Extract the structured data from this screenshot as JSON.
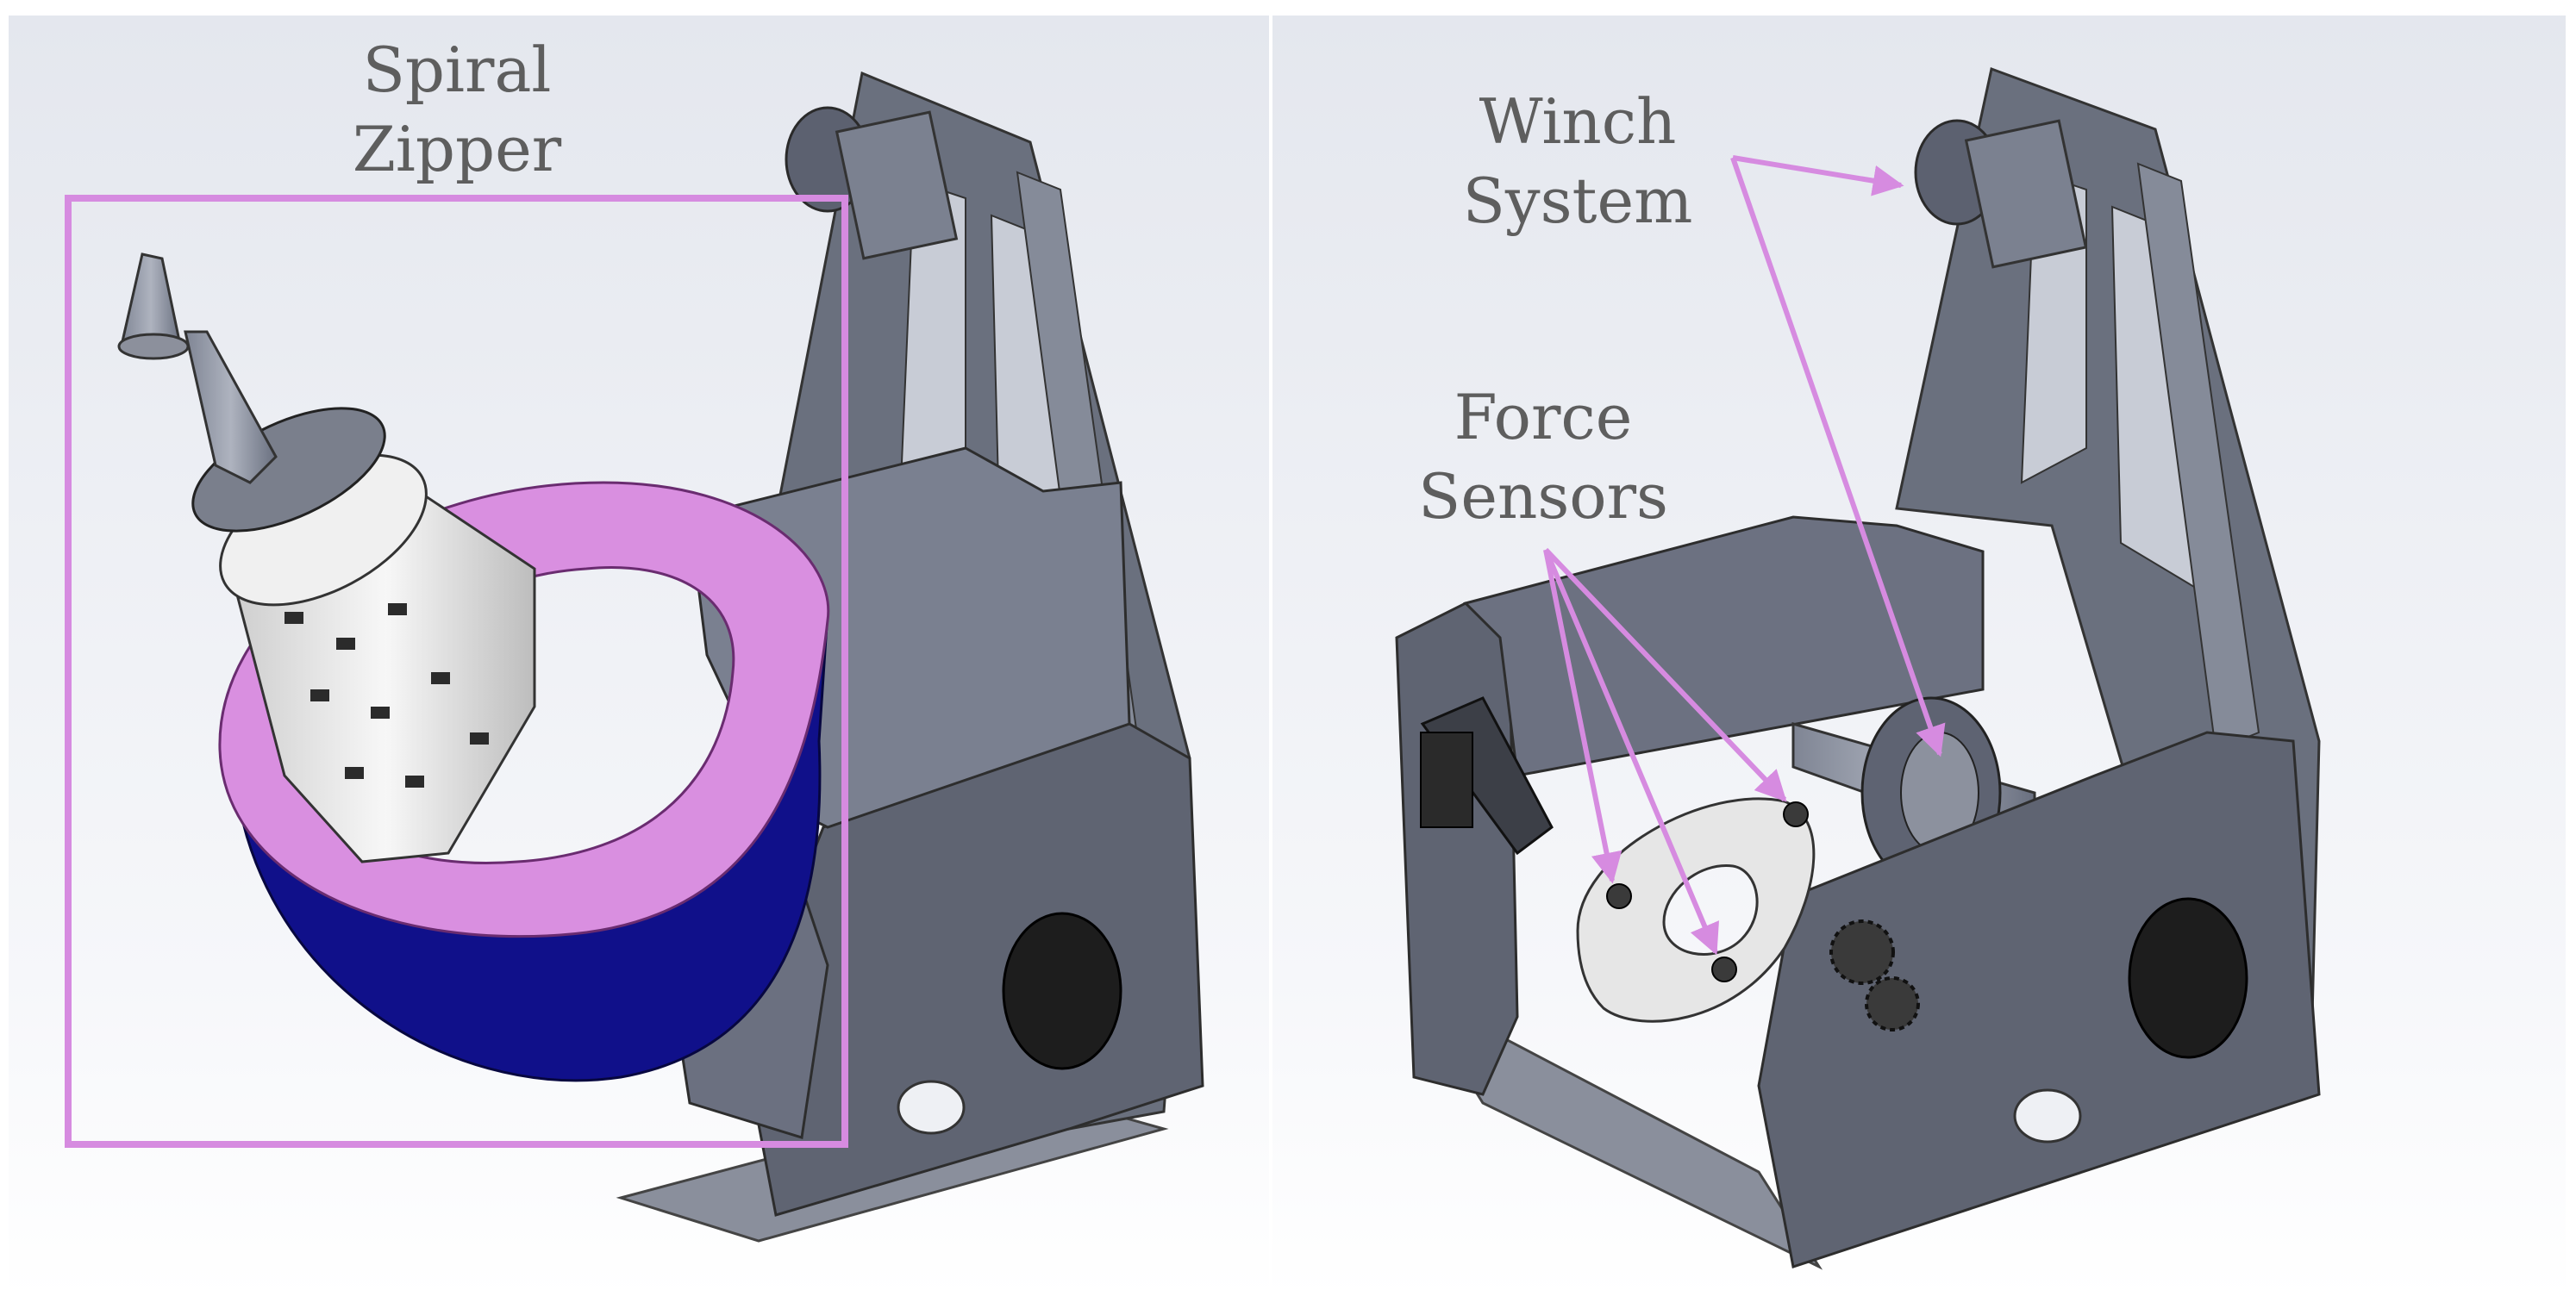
{
  "figure": {
    "panels": [
      {
        "id": "left",
        "annotations": [
          {
            "line1": "Spiral",
            "line2": "Zipper"
          }
        ]
      },
      {
        "id": "right",
        "annotations": [
          {
            "line1": "Winch",
            "line2": "System"
          },
          {
            "line1": "Force",
            "line2": "Sensors"
          }
        ]
      }
    ],
    "colors": {
      "annotation": "#d68be0",
      "text": "#5e5e5e",
      "frame": "#5f6472",
      "frame_light": "#b9bdc8",
      "spool_blue": "#10108a",
      "ring_pink": "#d98fe0",
      "background_top": "#e4e7ee",
      "background_bottom": "#ffffff"
    }
  }
}
